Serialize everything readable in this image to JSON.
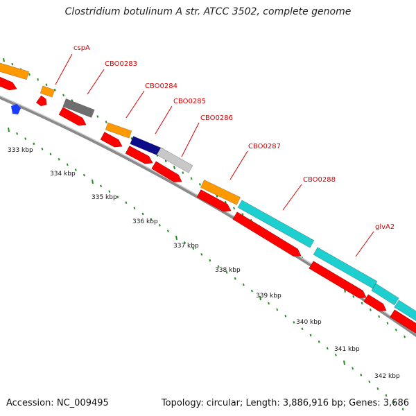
{
  "title": "Clostridium botulinum A str. ATCC 3502, complete genome",
  "footer": {
    "accession_label": "Accession:",
    "accession": "NC_009495",
    "topology_text": "Topology: circular; Length: 3,886,916 bp; Genes: 3,686"
  },
  "colors": {
    "backbone": "#8a8a8a",
    "tick": "#1f8c1f",
    "label": "#d40000",
    "cds": "#ff0000",
    "gene_orange": "#ff9900",
    "gene_gray": "#6e6e6e",
    "gene_navy": "#0d0d8a",
    "gene_silver": "#c8c8c8",
    "gene_cyan": "#1ecfcf",
    "marker_blue": "#1a3cff"
  },
  "kbp_labels": [
    "333 kbp",
    "334 kbp",
    "335 kbp",
    "336 kbp",
    "337 kbp",
    "338 kbp",
    "339 kbp",
    "340 kbp",
    "341 kbp",
    "342 kbp"
  ],
  "gene_labels": [
    "cspA",
    "CBO0283",
    "CBO0284",
    "CBO0285",
    "CBO0286",
    "CBO0287",
    "CBO0288",
    "glvA2"
  ]
}
